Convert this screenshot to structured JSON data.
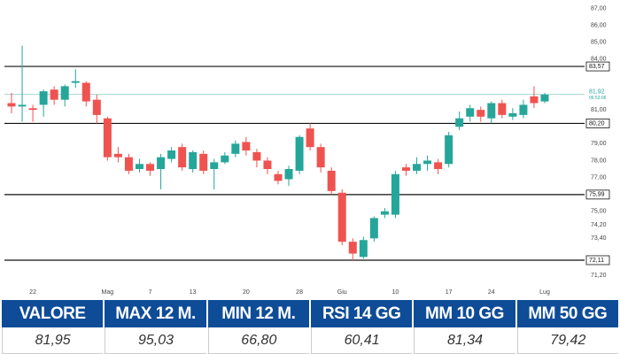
{
  "chart_data": {
    "type": "candlestick",
    "categories": [
      null,
      null,
      "22",
      null,
      null,
      null,
      null,
      null,
      null,
      "Mag",
      null,
      null,
      null,
      "7",
      null,
      null,
      null,
      "13",
      null,
      null,
      null,
      null,
      "20",
      null,
      null,
      null,
      null,
      "28",
      null,
      null,
      null,
      "Giu",
      null,
      null,
      null,
      null,
      "10",
      null,
      null,
      null,
      null,
      "17",
      null,
      null,
      null,
      "24",
      null,
      null,
      null,
      null,
      "Lug"
    ],
    "series": [
      {
        "up_color": "#26a69a",
        "down_color": "#ef5350",
        "open": [
          81.4,
          81.2,
          81.1,
          81.3,
          82.2,
          81.6,
          82.6,
          82.6,
          81.6,
          80.5,
          78.4,
          78.2,
          77.5,
          77.8,
          77.5,
          78.1,
          78.8,
          77.5,
          78.4,
          77.5,
          77.9,
          78.4,
          79.1,
          78.5,
          78.0,
          77.2,
          76.9,
          77.4,
          79.9,
          78.8,
          77.4,
          76.1,
          73.2,
          72.3,
          73.4,
          74.8,
          74.8,
          77.6,
          77.4,
          77.8,
          77.9,
          77.8,
          80.0,
          80.6,
          81.0,
          80.5,
          81.4,
          80.6,
          80.7,
          81.8,
          81.5
        ],
        "high": [
          82.0,
          84.8,
          81.3,
          82.2,
          82.4,
          82.5,
          83.4,
          82.7,
          81.9,
          80.6,
          78.8,
          78.4,
          78.1,
          77.9,
          78.4,
          78.8,
          79.0,
          78.6,
          78.6,
          78.1,
          78.5,
          79.2,
          79.4,
          78.7,
          78.2,
          77.4,
          77.7,
          79.5,
          80.2,
          79.0,
          77.6,
          76.3,
          73.4,
          73.5,
          74.7,
          75.2,
          77.4,
          77.8,
          78.2,
          78.3,
          78.1,
          79.7,
          80.9,
          81.3,
          81.2,
          81.5,
          81.6,
          81.1,
          81.6,
          82.4,
          82.0
        ],
        "low": [
          80.8,
          80.3,
          80.3,
          80.6,
          81.3,
          81.2,
          82.3,
          81.2,
          80.2,
          78.0,
          77.9,
          77.2,
          77.3,
          77.1,
          76.3,
          77.9,
          77.4,
          77.3,
          77.2,
          76.3,
          77.8,
          78.2,
          78.3,
          77.6,
          77.2,
          76.6,
          76.5,
          77.2,
          78.6,
          77.3,
          76.0,
          73.0,
          72.1,
          72.2,
          73.2,
          74.6,
          74.6,
          77.1,
          77.2,
          77.4,
          77.2,
          77.6,
          79.8,
          80.3,
          80.3,
          80.2,
          80.5,
          80.4,
          80.5,
          81.1,
          81.4
        ],
        "close": [
          81.2,
          81.3,
          81.0,
          82.1,
          81.6,
          82.4,
          82.7,
          81.5,
          80.7,
          78.2,
          78.2,
          77.4,
          77.8,
          77.4,
          78.2,
          78.6,
          77.6,
          78.5,
          77.4,
          77.9,
          78.3,
          79.0,
          78.6,
          78.0,
          77.5,
          76.8,
          77.5,
          79.4,
          78.8,
          77.6,
          76.2,
          73.2,
          72.5,
          73.3,
          74.6,
          75.0,
          77.2,
          77.4,
          77.8,
          78.0,
          77.5,
          79.5,
          80.5,
          81.1,
          80.6,
          81.4,
          80.7,
          80.8,
          81.3,
          81.4,
          81.9
        ]
      }
    ],
    "ylim": [
      70.8,
      87.5
    ],
    "yticks": [
      {
        "value": 87,
        "label": "87,00"
      },
      {
        "value": 86,
        "label": "86,00"
      },
      {
        "value": 85,
        "label": "85,00"
      },
      {
        "value": 84,
        "label": "84,00"
      },
      {
        "value": 81,
        "label": "81,00"
      },
      {
        "value": 79,
        "label": "79,00"
      },
      {
        "value": 78,
        "label": "78,00"
      },
      {
        "value": 77,
        "label": "77,00"
      },
      {
        "value": 75,
        "label": "75,00"
      },
      {
        "value": 74.2,
        "label": "74,20"
      },
      {
        "value": 73.4,
        "label": "73,40"
      },
      {
        "value": 71.2,
        "label": "71,20"
      }
    ],
    "grid": false,
    "levels": [
      {
        "value": 83.57,
        "label": "83,57"
      },
      {
        "value": 80.2,
        "label": "80,20"
      },
      {
        "value": 75.99,
        "label": "75,99"
      },
      {
        "value": 72.11,
        "label": "72,11"
      }
    ],
    "last_price": {
      "value": 81.92,
      "label": "81,92",
      "countdown": "06:53:06",
      "color": "#26a69a"
    }
  },
  "table": {
    "headers": [
      "VALORE",
      "MAX 12 M.",
      "MIN 12 M.",
      "RSI 14 GG",
      "MM 10 GG",
      "MM 50 GG"
    ],
    "rows": [
      [
        "81,95",
        "95,03",
        "66,80",
        "60,41",
        "81,34",
        "79,42"
      ]
    ]
  }
}
